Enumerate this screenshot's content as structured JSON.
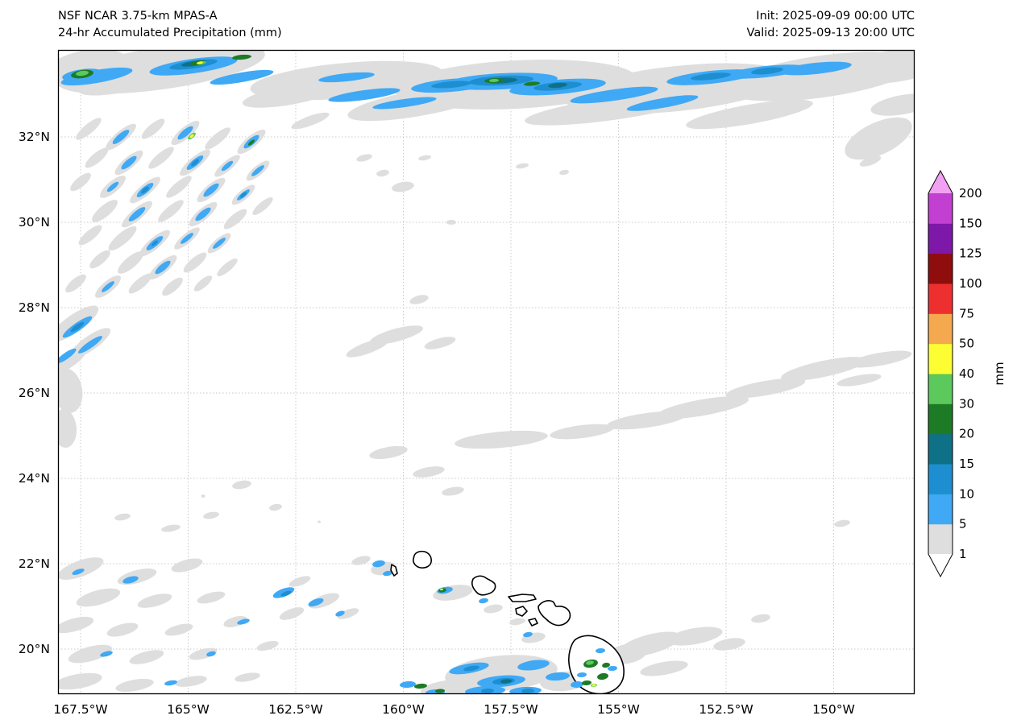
{
  "header": {
    "title_line1": "NSF NCAR 3.75-km MPAS-A",
    "title_line2": "24-hr Accumulated Precipitation (mm)",
    "init_line": "Init: 2025-09-09 00:00 UTC",
    "valid_line": "Valid: 2025-09-13 20:00 UTC"
  },
  "axes": {
    "lat_labels": [
      "32°N",
      "30°N",
      "28°N",
      "26°N",
      "24°N",
      "22°N",
      "20°N"
    ],
    "lon_labels": [
      "167.5°W",
      "165°W",
      "162.5°W",
      "160°W",
      "157.5°W",
      "155°W",
      "152.5°W",
      "150°W"
    ]
  },
  "colorbar": {
    "unit": "mm",
    "tick_labels": [
      "200",
      "150",
      "125",
      "100",
      "75",
      "50",
      "40",
      "30",
      "20",
      "15",
      "10",
      "5",
      "1"
    ],
    "levels": [
      {
        "value": 1,
        "color": "#dedede"
      },
      {
        "value": 5,
        "color": "#3fa9f5"
      },
      {
        "value": 10,
        "color": "#1d8fd0"
      },
      {
        "value": 15,
        "color": "#0e7187"
      },
      {
        "value": 20,
        "color": "#1e7b25"
      },
      {
        "value": 30,
        "color": "#5bc95b"
      },
      {
        "value": 40,
        "color": "#fdfd33"
      },
      {
        "value": 50,
        "color": "#f5a94e"
      },
      {
        "value": 75,
        "color": "#ee2f2f"
      },
      {
        "value": 100,
        "color": "#900d0d"
      },
      {
        "value": 125,
        "color": "#7d18a8"
      },
      {
        "value": 150,
        "color": "#c13fd1"
      }
    ],
    "under_color": "#ffffff",
    "over_color": "#f2a0f2"
  },
  "map": {
    "region_note": "North-central Pacific around the Hawaiian Islands",
    "grid_shown": true
  }
}
